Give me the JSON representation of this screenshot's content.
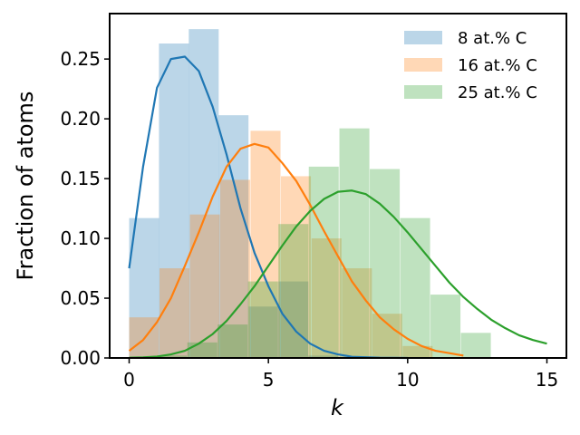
{
  "chart_data": {
    "type": "bar",
    "title": "",
    "xlabel": "k",
    "ylabel": "Fraction of atoms",
    "xlim": [
      -0.7,
      15.7
    ],
    "ylim": [
      0,
      0.288
    ],
    "xticks": [
      0,
      5,
      10,
      15
    ],
    "yticks": [
      0.0,
      0.05,
      0.1,
      0.15,
      0.2,
      0.25
    ],
    "ytick_labels": [
      "0.00",
      "0.05",
      "0.10",
      "0.15",
      "0.20",
      "0.25"
    ],
    "legend_position": "top-right",
    "bin_width": 1.075,
    "series": [
      {
        "name": "8 at.% C",
        "color": "#1f77b4",
        "fill": "#bad5ea",
        "bins": [
          {
            "x0": 0.0,
            "value": 0.117
          },
          {
            "x0": 1.07,
            "value": 0.263
          },
          {
            "x0": 2.14,
            "value": 0.275
          },
          {
            "x0": 3.21,
            "value": 0.203
          },
          {
            "x0": 4.29,
            "value": 0.043
          },
          {
            "x0": 5.36,
            "value": 0.064
          },
          {
            "x0": 6.43,
            "value": 0.002
          },
          {
            "x0": 7.5,
            "value": 0.0
          }
        ],
        "fit_curve": {
          "x": [
            0,
            0.5,
            1,
            1.5,
            2,
            2.5,
            3,
            3.5,
            4,
            4.5,
            5,
            5.5,
            6,
            6.5,
            7,
            7.5,
            8,
            9,
            10
          ],
          "y": [
            0.075,
            0.16,
            0.226,
            0.25,
            0.252,
            0.24,
            0.21,
            0.17,
            0.125,
            0.088,
            0.06,
            0.037,
            0.022,
            0.012,
            0.006,
            0.003,
            0.001,
            0.0002,
            0.0
          ]
        }
      },
      {
        "name": "16 at.% C",
        "color": "#ff7f0e",
        "fill": "#fed0a7",
        "bins": [
          {
            "x0": 0.0,
            "value": 0.034
          },
          {
            "x0": 1.09,
            "value": 0.075
          },
          {
            "x0": 2.18,
            "value": 0.12
          },
          {
            "x0": 3.27,
            "value": 0.149
          },
          {
            "x0": 4.36,
            "value": 0.19
          },
          {
            "x0": 5.45,
            "value": 0.152
          },
          {
            "x0": 6.55,
            "value": 0.1
          },
          {
            "x0": 7.64,
            "value": 0.075
          },
          {
            "x0": 8.73,
            "value": 0.037
          },
          {
            "x0": 9.82,
            "value": 0.01
          }
        ],
        "fit_curve": {
          "x": [
            0,
            0.5,
            1,
            1.5,
            2,
            2.5,
            3,
            3.5,
            4,
            4.5,
            5,
            5.5,
            6,
            6.5,
            7,
            7.5,
            8,
            8.5,
            9,
            9.5,
            10,
            10.5,
            11,
            11.5,
            12
          ],
          "y": [
            0.006,
            0.015,
            0.03,
            0.05,
            0.077,
            0.105,
            0.135,
            0.16,
            0.175,
            0.179,
            0.176,
            0.163,
            0.148,
            0.128,
            0.106,
            0.085,
            0.064,
            0.048,
            0.034,
            0.024,
            0.016,
            0.01,
            0.006,
            0.004,
            0.002
          ]
        }
      },
      {
        "name": "25 at.% C",
        "color": "#2ca02c",
        "fill": "#bde3bc",
        "bins": [
          {
            "x0": 1.0,
            "value": 0.002
          },
          {
            "x0": 2.09,
            "value": 0.013
          },
          {
            "x0": 3.18,
            "value": 0.028
          },
          {
            "x0": 4.27,
            "value": 0.064
          },
          {
            "x0": 5.36,
            "value": 0.112
          },
          {
            "x0": 6.45,
            "value": 0.16
          },
          {
            "x0": 7.55,
            "value": 0.192
          },
          {
            "x0": 8.64,
            "value": 0.158
          },
          {
            "x0": 9.73,
            "value": 0.117
          },
          {
            "x0": 10.82,
            "value": 0.053
          },
          {
            "x0": 11.91,
            "value": 0.021
          }
        ],
        "fit_curve": {
          "x": [
            0,
            0.5,
            1,
            1.5,
            2,
            2.5,
            3,
            3.5,
            4,
            4.5,
            5,
            5.5,
            6,
            6.5,
            7,
            7.5,
            8,
            8.5,
            9,
            9.5,
            10,
            10.5,
            11,
            11.5,
            12,
            12.5,
            13,
            13.5,
            14,
            14.5,
            15
          ],
          "y": [
            0.0002,
            0.0005,
            0.0012,
            0.003,
            0.006,
            0.012,
            0.02,
            0.031,
            0.045,
            0.06,
            0.077,
            0.094,
            0.11,
            0.123,
            0.133,
            0.139,
            0.14,
            0.137,
            0.129,
            0.118,
            0.105,
            0.091,
            0.077,
            0.063,
            0.051,
            0.041,
            0.032,
            0.025,
            0.019,
            0.015,
            0.012
          ]
        }
      }
    ]
  }
}
